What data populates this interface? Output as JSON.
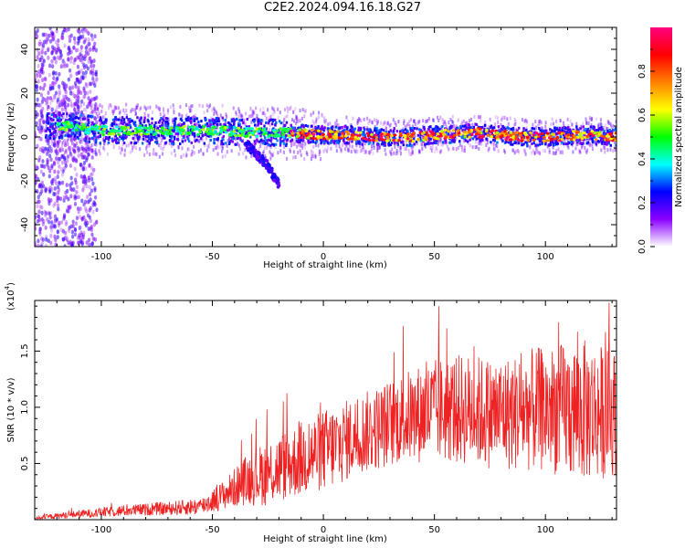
{
  "title": "C2E2.2024.094.16.18.G27",
  "chart_data": [
    {
      "type": "heatmap",
      "xlabel": "Height of straight line (km)",
      "ylabel": "Frequency (Hz)",
      "xlim": [
        -130,
        132
      ],
      "ylim": [
        -50,
        50
      ],
      "xticks": [
        -100,
        -50,
        0,
        50,
        100
      ],
      "yticks": [
        -40,
        -20,
        0,
        20,
        40
      ],
      "colorbar": {
        "label": "Normalized spectral amplitude",
        "range": [
          0.0,
          1.0
        ],
        "ticks": [
          0.0,
          0.2,
          0.4,
          0.6,
          0.8
        ],
        "colors": [
          "#ffffff",
          "#8a00ff",
          "#0000ff",
          "#00ffff",
          "#00ff00",
          "#ffff00",
          "#ff8000",
          "#ff0000",
          "#ff0080"
        ]
      },
      "ridge": {
        "x": [
          -125,
          -115,
          -100,
          -90,
          -80,
          -70,
          -60,
          -50,
          -40,
          -30,
          -20,
          -10,
          0,
          10,
          20,
          30,
          40,
          50,
          60,
          70,
          80,
          90,
          100,
          110,
          120,
          130
        ],
        "y": [
          5,
          5,
          3,
          3,
          3,
          2.5,
          3,
          3,
          2.5,
          2,
          2,
          1.5,
          1,
          1,
          0.5,
          0,
          0,
          1,
          1.5,
          2,
          1,
          0,
          0,
          0.5,
          1,
          0
        ]
      },
      "branch": {
        "x": [
          -35,
          -30,
          -25,
          -20
        ],
        "y": [
          -3,
          -8,
          -13,
          -22
        ]
      },
      "grid": false,
      "legend": "colorbar-right"
    },
    {
      "type": "line",
      "xlabel": "Height of straight line (km)",
      "ylabel": "SNR (10 * v/v)",
      "yscale_label": "(x10",
      "yscale_exp": "4",
      "xlim": [
        -130,
        132
      ],
      "ylim": [
        0,
        19500
      ],
      "xticks": [
        -100,
        -50,
        0,
        50,
        100
      ],
      "yticks": [
        5000,
        10000,
        15000
      ],
      "yticklabels": [
        "0.5",
        "1.0",
        "1.5"
      ],
      "color": "#ee2222",
      "envelope": {
        "x": [
          -130,
          -110,
          -90,
          -70,
          -55,
          -45,
          -35,
          -25,
          -15,
          -5,
          5,
          15,
          25,
          35,
          45,
          55,
          65,
          75,
          85,
          95,
          105,
          115,
          125,
          132
        ],
        "mean": [
          150,
          500,
          800,
          1000,
          1200,
          2200,
          3500,
          4200,
          5000,
          5800,
          6500,
          7500,
          8200,
          9000,
          9500,
          9800,
          9800,
          9500,
          9500,
          9800,
          9800,
          9700,
          9600,
          9500
        ],
        "amp": [
          150,
          350,
          500,
          600,
          800,
          1300,
          2200,
          3000,
          3200,
          3500,
          3800,
          3500,
          3800,
          4000,
          4500,
          4800,
          5000,
          5000,
          5200,
          5500,
          5800,
          6500,
          6000,
          5500
        ]
      },
      "grid": false
    }
  ]
}
